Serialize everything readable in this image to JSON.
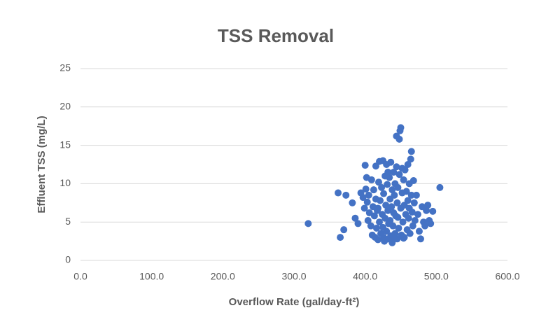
{
  "chart_data": {
    "type": "scatter",
    "title": "TSS Removal",
    "x_label": "Overflow Rate (gal/day-ft²)",
    "y_label": "Effluent TSS (mg/L)",
    "color": "#4472c4",
    "grid": true,
    "xlim": [
      0,
      600
    ],
    "xticks": [
      {
        "value": 0,
        "label": "0.0"
      },
      {
        "value": 100,
        "label": "100.0"
      },
      {
        "value": 200,
        "label": "200.0"
      },
      {
        "value": 300,
        "label": "300.0"
      },
      {
        "value": 400,
        "label": "400.0"
      },
      {
        "value": 500,
        "label": "500.0"
      },
      {
        "value": 600,
        "label": "600.0"
      }
    ],
    "ylim": [
      0,
      25
    ],
    "yticks": [
      0,
      5,
      10,
      15,
      20,
      25
    ],
    "x": [
      320,
      365,
      362,
      373,
      370,
      382,
      386,
      390,
      394,
      397,
      399,
      400,
      402,
      401,
      403,
      404,
      405,
      406,
      408,
      409,
      410,
      411,
      412,
      413,
      414,
      415,
      415,
      416,
      417,
      418,
      419,
      420,
      420,
      421,
      422,
      423,
      424,
      425,
      425,
      426,
      427,
      428,
      428,
      429,
      430,
      430,
      431,
      432,
      433,
      433,
      434,
      435,
      435,
      436,
      436,
      437,
      438,
      438,
      439,
      440,
      440,
      441,
      442,
      442,
      443,
      444,
      444,
      445,
      445,
      446,
      447,
      448,
      448,
      449,
      450,
      450,
      451,
      452,
      452,
      453,
      454,
      455,
      455,
      456,
      457,
      458,
      459,
      460,
      460,
      461,
      462,
      463,
      464,
      465,
      465,
      466,
      467,
      468,
      469,
      470,
      472,
      474,
      476,
      478,
      480,
      482,
      484,
      486,
      488,
      490,
      492,
      495,
      505,
      426,
      432,
      440,
      418,
      446,
      454,
      462
    ],
    "y": [
      4.8,
      3.0,
      8.8,
      8.5,
      4.0,
      7.5,
      5.5,
      4.8,
      8.8,
      8.2,
      6.8,
      12.4,
      10.8,
      9.3,
      7.6,
      5.2,
      8.5,
      6.2,
      4.5,
      10.5,
      3.3,
      7.0,
      9.2,
      5.8,
      3.0,
      12.3,
      8.0,
      4.2,
      6.5,
      2.7,
      10.2,
      12.9,
      5.0,
      7.8,
      3.5,
      9.5,
      6.0,
      13.0,
      4.3,
      8.7,
      2.5,
      11.0,
      5.5,
      7.2,
      3.8,
      12.5,
      9.9,
      6.5,
      4.8,
      2.8,
      10.8,
      8.0,
      5.2,
      3.2,
      12.8,
      7.0,
      9.2,
      2.3,
      4.5,
      11.5,
      6.2,
      8.5,
      3.5,
      10.0,
      5.8,
      16.2,
      12.2,
      7.5,
      2.8,
      9.5,
      4.2,
      15.8,
      11.2,
      16.9,
      17.3,
      6.8,
      3.3,
      12.0,
      8.8,
      5.0,
      10.5,
      7.2,
      3.0,
      11.8,
      6.0,
      9.0,
      4.0,
      12.5,
      7.8,
      5.5,
      10.0,
      3.5,
      13.2,
      14.2,
      8.5,
      6.3,
      4.5,
      10.4,
      7.5,
      5.2,
      8.5,
      6.0,
      3.8,
      2.8,
      7.0,
      5.0,
      4.5,
      6.5,
      7.2,
      5.2,
      4.8,
      6.4,
      9.5,
      3.0,
      11.5,
      3.0,
      6.8,
      5.6,
      2.9,
      6.8
    ]
  }
}
